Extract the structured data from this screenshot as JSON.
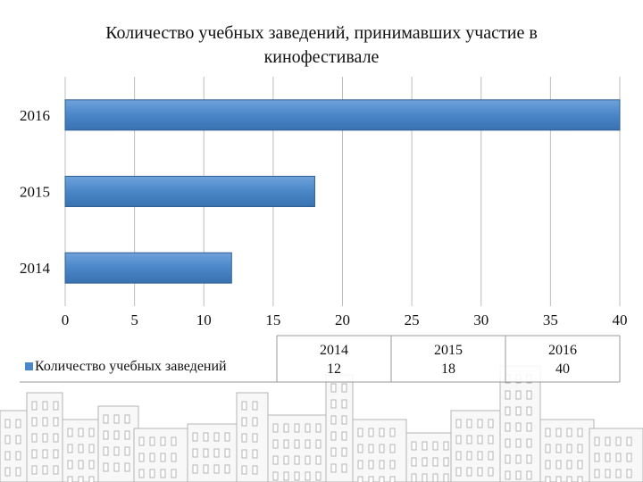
{
  "title": "Количество учебных заведений, принимавших участие в кинофестивале",
  "chart_data": {
    "type": "bar",
    "orientation": "horizontal",
    "title": "Количество учебных заведений, принимавших участие в кинофестивале",
    "categories": [
      "2014",
      "2015",
      "2016"
    ],
    "series": [
      {
        "name": "Количество учебных заведений",
        "values": [
          12,
          18,
          40
        ]
      }
    ],
    "x_ticks": [
      "0",
      "5",
      "10",
      "15",
      "20",
      "25",
      "30",
      "35",
      "40"
    ],
    "xlim": [
      0,
      40
    ],
    "grid": true,
    "legend": "bottom-left data table",
    "colors": {
      "bar": "#3f7cbd",
      "bar_light": "#6fa3db",
      "grid": "#bdbdbd"
    }
  },
  "data_table": {
    "series_label": "Количество учебных заведений",
    "years": [
      "2014",
      "2015",
      "2016"
    ],
    "values": [
      "12",
      "18",
      "40"
    ]
  }
}
